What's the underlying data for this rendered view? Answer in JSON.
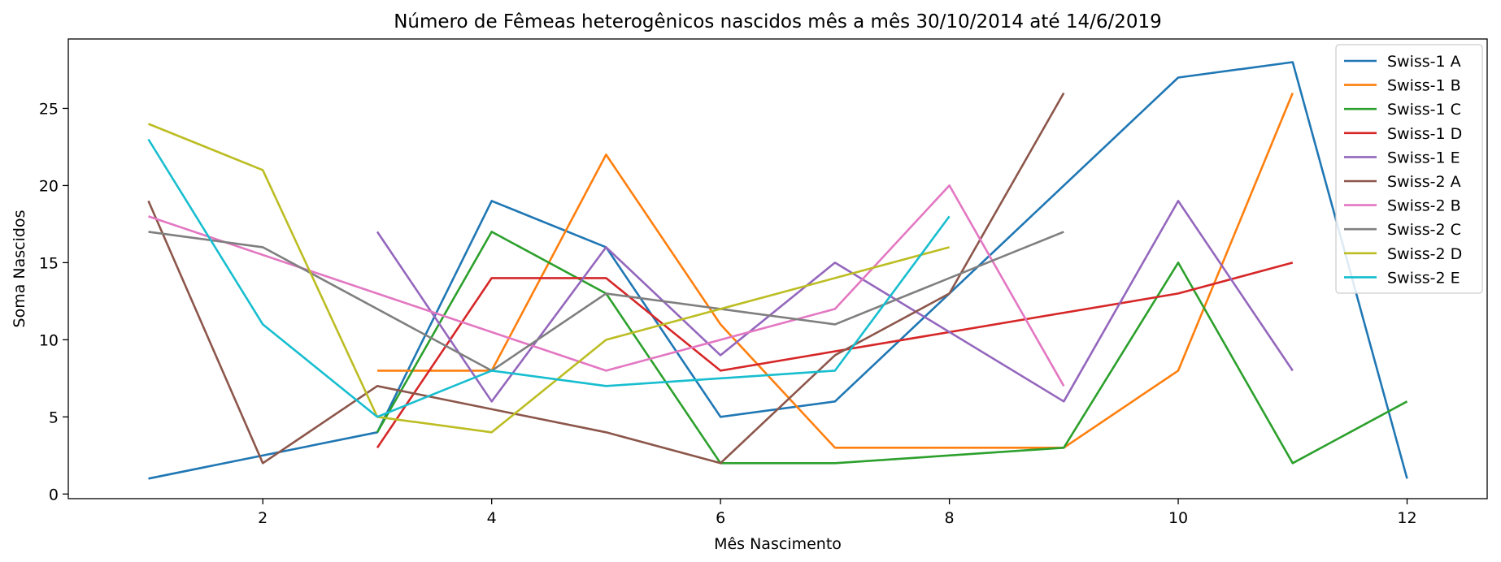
{
  "chart_data": {
    "type": "line",
    "title": "Número de Fêmeas heterogênicos nascidos mês a mês 30/10/2014 até 14/6/2019",
    "xlabel": "Mês Nascimento",
    "ylabel": "Soma Nascidos",
    "xlim": [
      0.3,
      12.7
    ],
    "ylim": [
      -0.3,
      29.5
    ],
    "xticks": [
      2,
      4,
      6,
      8,
      10,
      12
    ],
    "yticks": [
      0,
      5,
      10,
      15,
      20,
      25
    ],
    "grid": false,
    "legend_position": "top-right",
    "series": [
      {
        "name": "Swiss-1 A",
        "color": "#1f77b4",
        "x": [
          1,
          3,
          4,
          5,
          6,
          7,
          8,
          10,
          11,
          12
        ],
        "y": [
          1,
          4,
          19,
          16,
          5,
          6,
          13,
          27,
          28,
          1
        ]
      },
      {
        "name": "Swiss-1 B",
        "color": "#ff7f0e",
        "x": [
          3,
          4,
          5,
          6,
          7,
          9,
          10,
          11
        ],
        "y": [
          8,
          8,
          22,
          11,
          3,
          3,
          8,
          26
        ]
      },
      {
        "name": "Swiss-1 C",
        "color": "#2ca02c",
        "x": [
          3,
          4,
          5,
          6,
          7,
          9,
          10,
          11,
          12
        ],
        "y": [
          4,
          17,
          13,
          2,
          2,
          3,
          15,
          2,
          6
        ]
      },
      {
        "name": "Swiss-1 D",
        "color": "#d62728",
        "x": [
          3,
          4,
          5,
          6,
          10,
          11
        ],
        "y": [
          3,
          14,
          14,
          8,
          13,
          15
        ]
      },
      {
        "name": "Swiss-1 E",
        "color": "#9467bd",
        "x": [
          3,
          4,
          5,
          6,
          7,
          9,
          10,
          11
        ],
        "y": [
          17,
          6,
          16,
          9,
          15,
          6,
          19,
          8
        ]
      },
      {
        "name": "Swiss-2 A",
        "color": "#8c564b",
        "x": [
          1,
          2,
          3,
          5,
          6,
          7,
          8,
          9
        ],
        "y": [
          19,
          2,
          7,
          4,
          2,
          9,
          13,
          26
        ]
      },
      {
        "name": "Swiss-2 B",
        "color": "#e377c2",
        "x": [
          1,
          5,
          7,
          8,
          9
        ],
        "y": [
          18,
          8,
          12,
          20,
          7
        ]
      },
      {
        "name": "Swiss-2 C",
        "color": "#7f7f7f",
        "x": [
          1,
          2,
          4,
          5,
          7,
          9
        ],
        "y": [
          17,
          16,
          8,
          13,
          11,
          17
        ]
      },
      {
        "name": "Swiss-2 D",
        "color": "#bcbd22",
        "x": [
          1,
          2,
          3,
          4,
          5,
          8
        ],
        "y": [
          24,
          21,
          5,
          4,
          10,
          16
        ]
      },
      {
        "name": "Swiss-2 E",
        "color": "#17becf",
        "x": [
          1,
          2,
          3,
          4,
          5,
          7,
          8
        ],
        "y": [
          23,
          11,
          5,
          8,
          7,
          8,
          18
        ]
      }
    ]
  }
}
